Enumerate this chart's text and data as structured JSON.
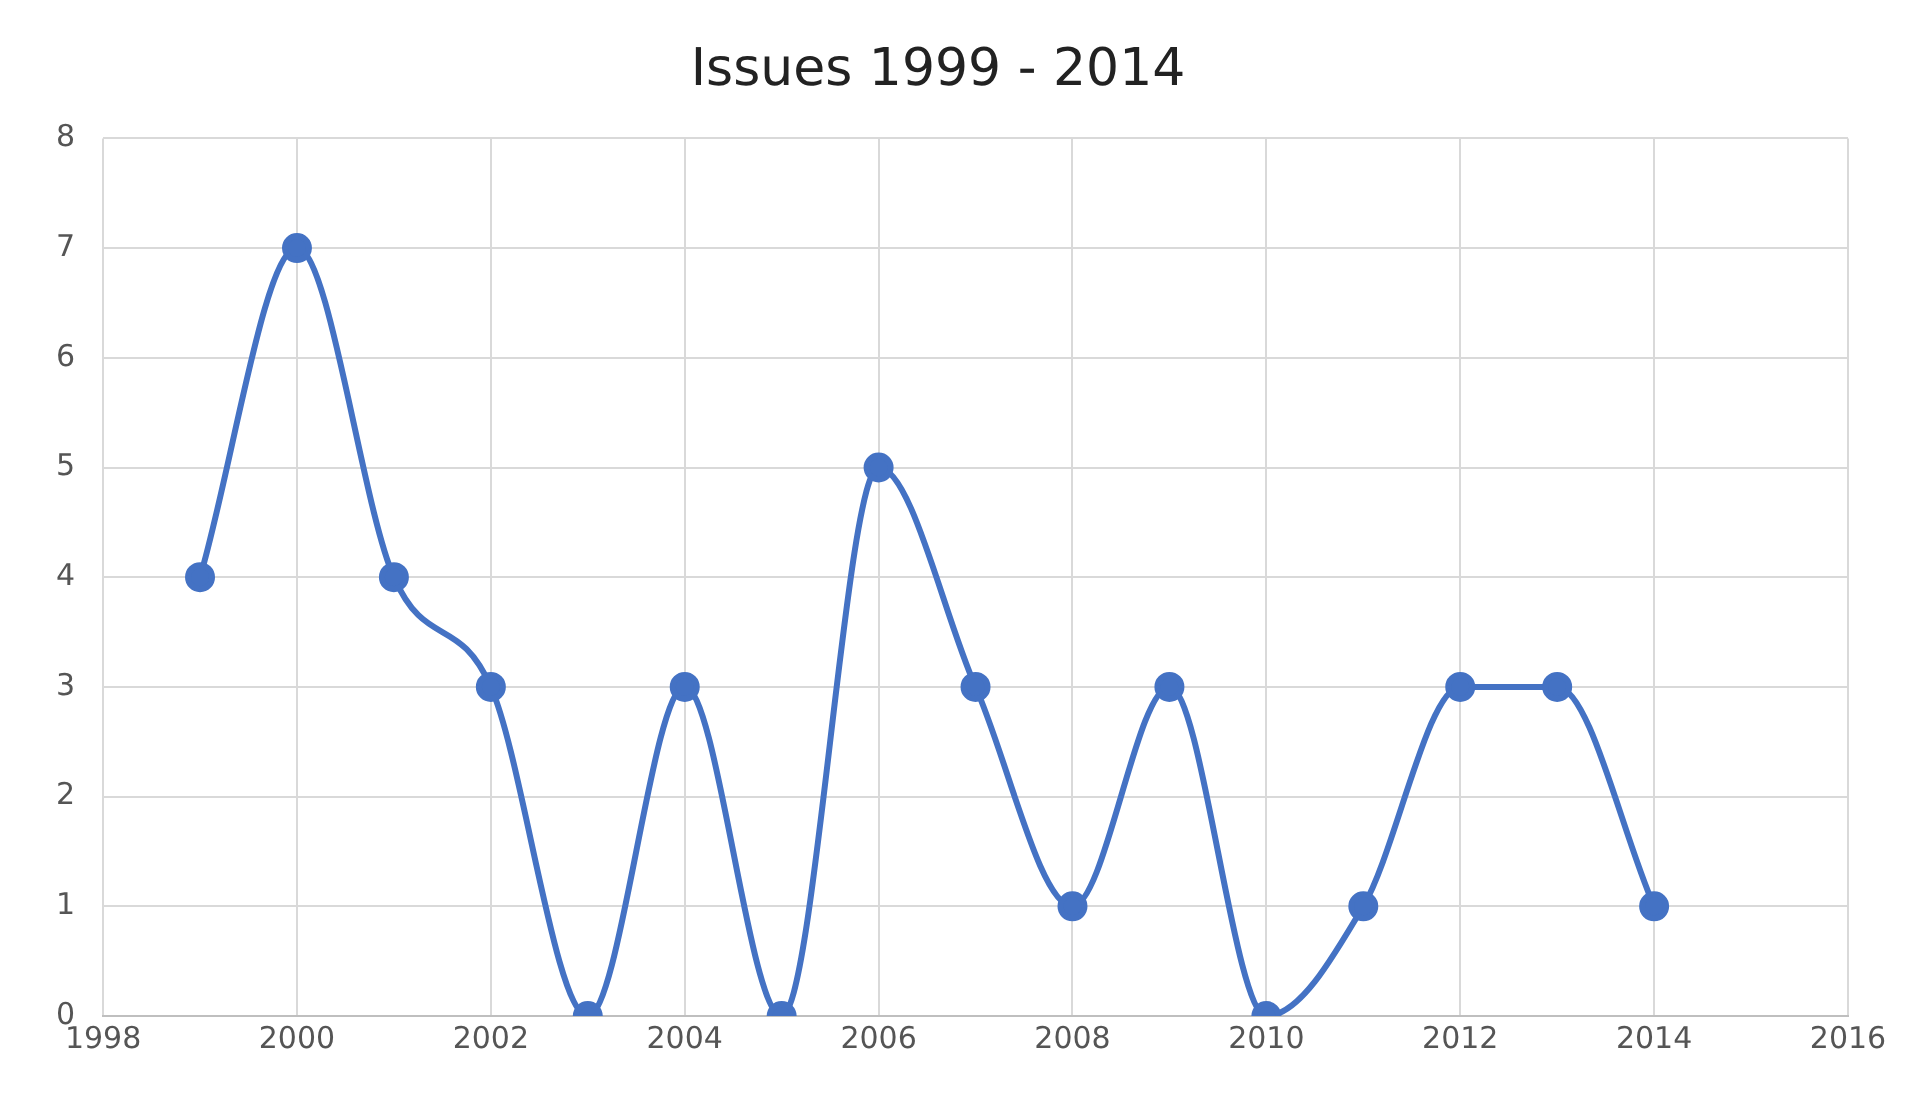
{
  "chart_data": {
    "type": "line",
    "title": "Issues 1999 - 2014",
    "x": [
      1999,
      2000,
      2001,
      2002,
      2003,
      2004,
      2005,
      2006,
      2007,
      2008,
      2009,
      2010,
      2011,
      2012,
      2013,
      2014
    ],
    "series": [
      {
        "color": "#4472c4",
        "values": [
          4,
          7,
          4,
          3,
          0,
          3,
          0,
          5,
          3,
          1,
          3,
          0,
          1,
          3,
          3,
          1
        ]
      }
    ],
    "xlim": [
      1998,
      2016
    ],
    "xticks": [
      1998,
      2000,
      2002,
      2004,
      2006,
      2008,
      2010,
      2012,
      2014,
      2016
    ],
    "ylim": [
      0,
      8
    ],
    "yticks": [
      0,
      1,
      2,
      3,
      4,
      5,
      6,
      7,
      8
    ],
    "grid": true,
    "legend": false,
    "marker": "circle",
    "line_style": "solid"
  }
}
